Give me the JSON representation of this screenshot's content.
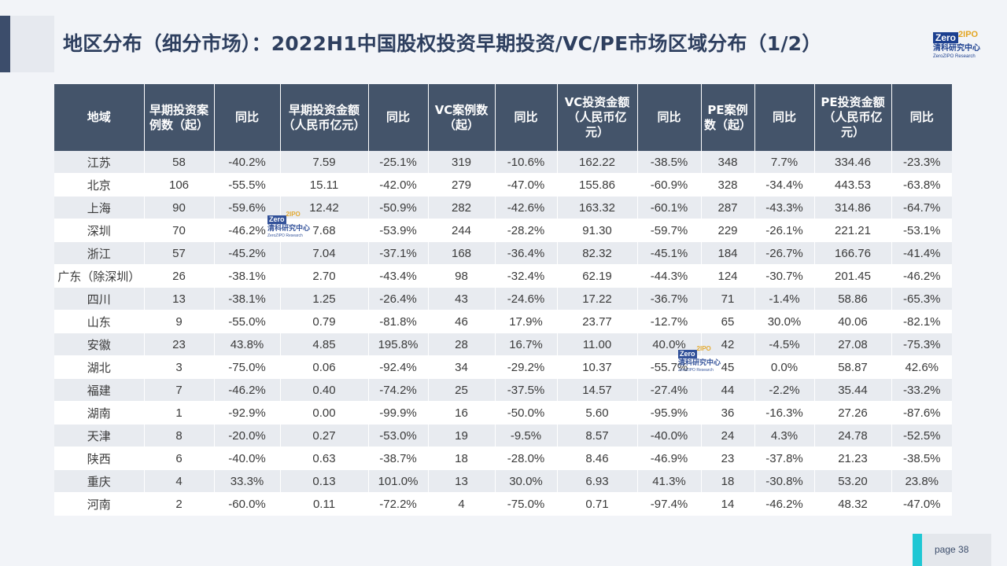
{
  "title": "地区分布（细分市场）：2022H1中国股权投资早期投资/VC/PE市场区域分布（1/2）",
  "logo": {
    "box_text": "Zero",
    "accent_text": "2IPO",
    "cn": "清科研究中心",
    "en": "ZeroZIPO Research"
  },
  "watermark": {
    "box_text": "Zero",
    "accent_text": "2IPO",
    "cn": "清科研究中心",
    "en": "ZeroZIPO Research"
  },
  "table": {
    "headers": [
      "地域",
      "早期投资案例数（起）",
      "同比",
      "早期投资金额（人民币亿元）",
      "同比",
      "VC案例数（起）",
      "同比",
      "VC投资金额（人民币亿元）",
      "同比",
      "PE案例数（起）",
      "同比",
      "PE投资金额（人民币亿元）",
      "同比"
    ],
    "rows": [
      [
        "江苏",
        "58",
        "-40.2%",
        "7.59",
        "-25.1%",
        "319",
        "-10.6%",
        "162.22",
        "-38.5%",
        "348",
        "7.7%",
        "334.46",
        "-23.3%"
      ],
      [
        "北京",
        "106",
        "-55.5%",
        "15.11",
        "-42.0%",
        "279",
        "-47.0%",
        "155.86",
        "-60.9%",
        "328",
        "-34.4%",
        "443.53",
        "-63.8%"
      ],
      [
        "上海",
        "90",
        "-59.6%",
        "12.42",
        "-50.9%",
        "282",
        "-42.6%",
        "163.32",
        "-60.1%",
        "287",
        "-43.3%",
        "314.86",
        "-64.7%"
      ],
      [
        "深圳",
        "70",
        "-46.2%",
        "7.68",
        "-53.9%",
        "244",
        "-28.2%",
        "91.30",
        "-59.7%",
        "229",
        "-26.1%",
        "221.21",
        "-53.1%"
      ],
      [
        "浙江",
        "57",
        "-45.2%",
        "7.04",
        "-37.1%",
        "168",
        "-36.4%",
        "82.32",
        "-45.1%",
        "184",
        "-26.7%",
        "166.76",
        "-41.4%"
      ],
      [
        "广东（除深圳）",
        "26",
        "-38.1%",
        "2.70",
        "-43.4%",
        "98",
        "-32.4%",
        "62.19",
        "-44.3%",
        "124",
        "-30.7%",
        "201.45",
        "-46.2%"
      ],
      [
        "四川",
        "13",
        "-38.1%",
        "1.25",
        "-26.4%",
        "43",
        "-24.6%",
        "17.22",
        "-36.7%",
        "71",
        "-1.4%",
        "58.86",
        "-65.3%"
      ],
      [
        "山东",
        "9",
        "-55.0%",
        "0.79",
        "-81.8%",
        "46",
        "17.9%",
        "23.77",
        "-12.7%",
        "65",
        "30.0%",
        "40.06",
        "-82.1%"
      ],
      [
        "安徽",
        "23",
        "43.8%",
        "4.85",
        "195.8%",
        "28",
        "16.7%",
        "11.00",
        "40.0%",
        "42",
        "-4.5%",
        "27.08",
        "-75.3%"
      ],
      [
        "湖北",
        "3",
        "-75.0%",
        "0.06",
        "-92.4%",
        "34",
        "-29.2%",
        "10.37",
        "-55.7%",
        "45",
        "0.0%",
        "58.87",
        "42.6%"
      ],
      [
        "福建",
        "7",
        "-46.2%",
        "0.40",
        "-74.2%",
        "25",
        "-37.5%",
        "14.57",
        "-27.4%",
        "44",
        "-2.2%",
        "35.44",
        "-33.2%"
      ],
      [
        "湖南",
        "1",
        "-92.9%",
        "0.00",
        "-99.9%",
        "16",
        "-50.0%",
        "5.60",
        "-95.9%",
        "36",
        "-16.3%",
        "27.26",
        "-87.6%"
      ],
      [
        "天津",
        "8",
        "-20.0%",
        "0.27",
        "-53.0%",
        "19",
        "-9.5%",
        "8.57",
        "-40.0%",
        "24",
        "4.3%",
        "24.78",
        "-52.5%"
      ],
      [
        "陕西",
        "6",
        "-40.0%",
        "0.63",
        "-38.7%",
        "18",
        "-28.0%",
        "8.46",
        "-46.9%",
        "23",
        "-37.8%",
        "21.23",
        "-38.5%"
      ],
      [
        "重庆",
        "4",
        "33.3%",
        "0.13",
        "101.0%",
        "13",
        "30.0%",
        "6.93",
        "41.3%",
        "18",
        "-30.8%",
        "53.20",
        "23.8%"
      ],
      [
        "河南",
        "2",
        "-60.0%",
        "0.11",
        "-72.2%",
        "4",
        "-75.0%",
        "0.71",
        "-97.4%",
        "14",
        "-46.2%",
        "48.32",
        "-47.0%"
      ]
    ]
  },
  "page_label": "page  38",
  "colors": {
    "header_bg": "#44546a",
    "title": "#2e3f5f",
    "odd_row": "#e8ebf0",
    "page_accent": "#1fc7d4"
  }
}
